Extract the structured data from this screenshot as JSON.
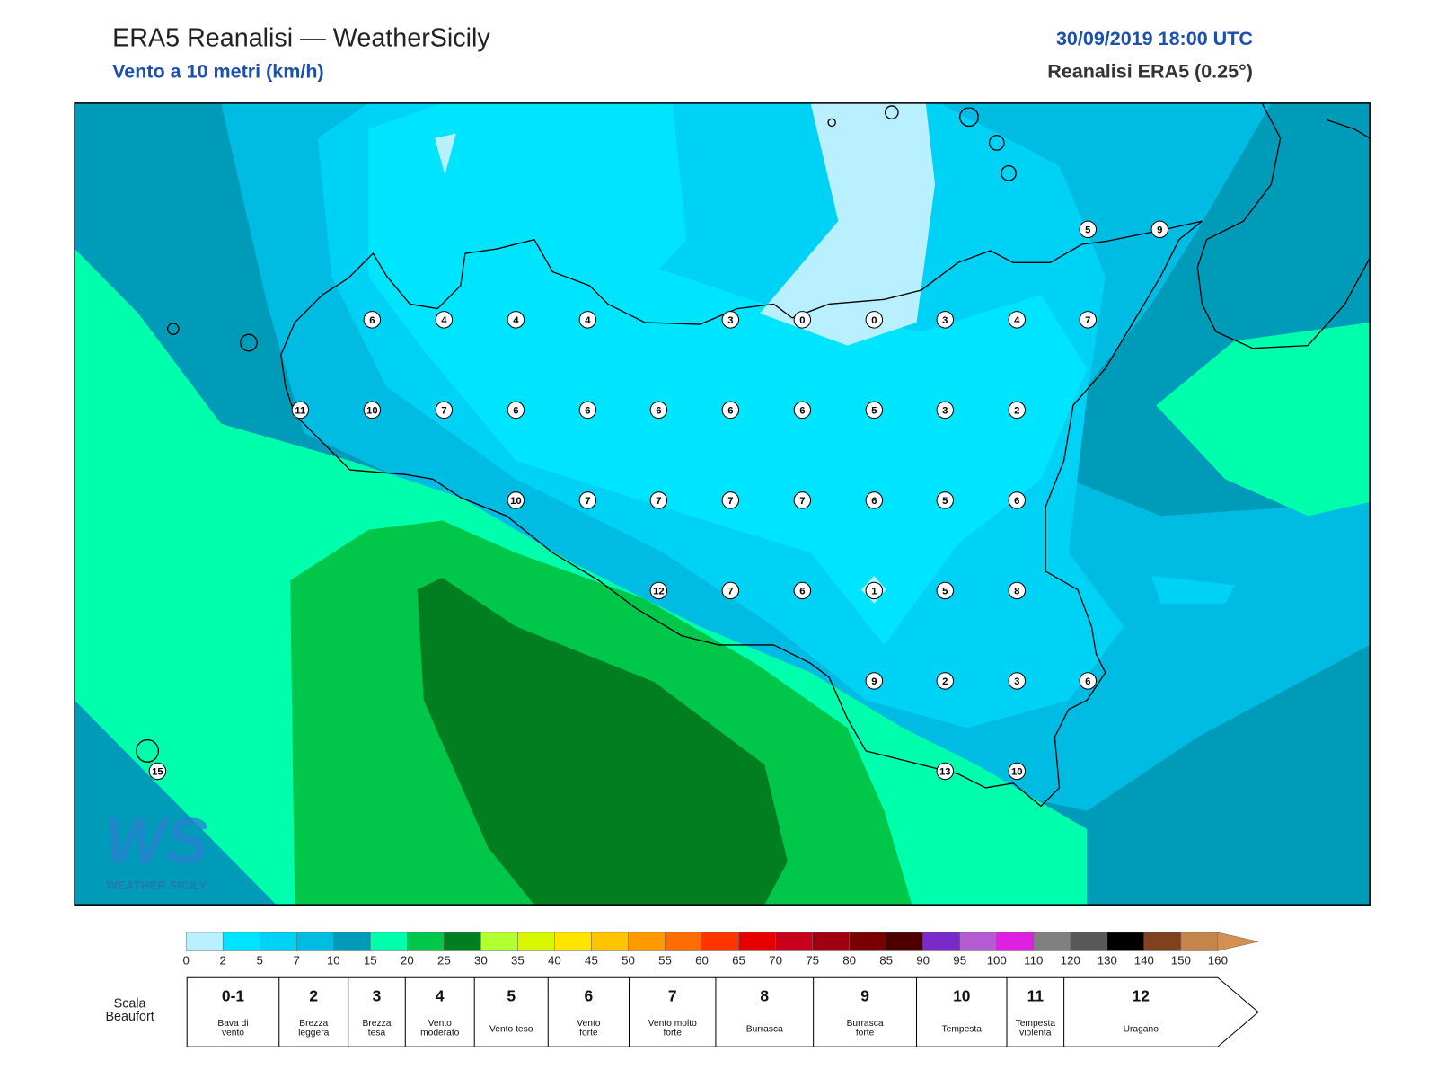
{
  "header": {
    "title": "ERA5 Reanalisi — WeatherSicily",
    "subtitle": "Vento a 10 metri (km/h)",
    "datetime": "30/09/2019 18:00 UTC",
    "source": "Reanalisi ERA5 (0.25°)"
  },
  "logo": {
    "mark": "WS",
    "text": "WEATHER SICILY"
  },
  "stations": [
    6,
    4,
    4,
    4,
    3,
    0,
    0,
    3,
    4,
    7,
    5,
    9,
    11,
    10,
    7,
    6,
    6,
    6,
    6,
    6,
    5,
    3,
    2,
    10,
    7,
    7,
    7,
    7,
    6,
    5,
    6,
    12,
    7,
    6,
    1,
    5,
    8,
    9,
    2,
    3,
    6,
    13,
    10,
    15
  ],
  "colorbar": {
    "ticks": [
      0,
      2,
      5,
      7,
      10,
      15,
      20,
      25,
      30,
      35,
      40,
      45,
      50,
      55,
      60,
      65,
      70,
      75,
      80,
      85,
      90,
      95,
      100,
      110,
      120,
      130,
      140,
      150,
      160
    ],
    "colors": [
      "#b9f0ff",
      "#00e5ff",
      "#00d2f5",
      "#00bce3",
      "#009bb9",
      "#00ffac",
      "#00c64a",
      "#007e20",
      "#b4ff30",
      "#d8f800",
      "#ffe400",
      "#ffc400",
      "#ff9a00",
      "#ff6c00",
      "#ff3400",
      "#e60000",
      "#c8001c",
      "#a00012",
      "#780000",
      "#4e0000",
      "#7a2ac8",
      "#b45ad2",
      "#e020e0",
      "#808080",
      "#585858",
      "#000000",
      "#80421e",
      "#c4844a"
    ],
    "extend_color": "#d49050"
  },
  "beaufort": {
    "label": [
      "Scala",
      "Beaufort"
    ],
    "items": [
      {
        "force": "0-1",
        "desc": [
          "Bava di",
          "vento"
        ]
      },
      {
        "force": "2",
        "desc": [
          "Brezza",
          "leggera"
        ]
      },
      {
        "force": "3",
        "desc": [
          "Brezza",
          "tesa"
        ]
      },
      {
        "force": "4",
        "desc": [
          "Vento",
          "moderato"
        ]
      },
      {
        "force": "5",
        "desc": [
          "Vento teso"
        ]
      },
      {
        "force": "6",
        "desc": [
          "Vento",
          "forte"
        ]
      },
      {
        "force": "7",
        "desc": [
          "Vento molto",
          "forte"
        ]
      },
      {
        "force": "8",
        "desc": [
          "Burrasca"
        ]
      },
      {
        "force": "9",
        "desc": [
          "Burrasca",
          "forte"
        ]
      },
      {
        "force": "10",
        "desc": [
          "Tempesta"
        ]
      },
      {
        "force": "11",
        "desc": [
          "Tempesta",
          "violenta"
        ]
      },
      {
        "force": "12",
        "desc": [
          "Uragano"
        ]
      }
    ]
  }
}
